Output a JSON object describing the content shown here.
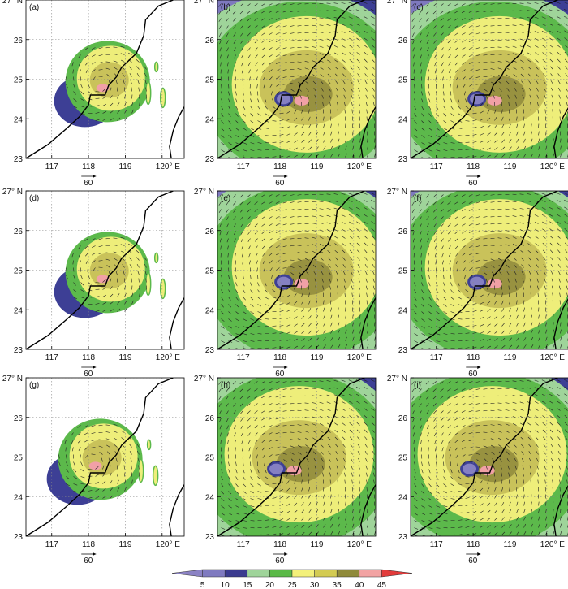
{
  "panels": [
    {
      "label": "(a)",
      "style": "sparse"
    },
    {
      "label": "(b)",
      "style": "full"
    },
    {
      "label": "(c)",
      "style": "full"
    },
    {
      "label": "(d)",
      "style": "sparse"
    },
    {
      "label": "(e)",
      "style": "full"
    },
    {
      "label": "(f)",
      "style": "full"
    },
    {
      "label": "(g)",
      "style": "sparse"
    },
    {
      "label": "(h)",
      "style": "full"
    },
    {
      "label": "(i)",
      "style": "full"
    }
  ],
  "axes": {
    "x_ticks": [
      "117",
      "118",
      "119",
      "120° E"
    ],
    "x_tick_values": [
      117,
      118,
      119,
      120
    ],
    "y_ticks": [
      "23",
      "24",
      "25",
      "26",
      "27° N"
    ],
    "y_tick_values": [
      23,
      24,
      25,
      26,
      27
    ],
    "xlim": [
      116.3,
      120.6
    ],
    "ylim": [
      23,
      27
    ]
  },
  "reference_vector_label": "60",
  "colorbar": {
    "levels": [
      "5",
      "10",
      "15",
      "20",
      "25",
      "30",
      "35",
      "40",
      "45"
    ],
    "colors": [
      "#8b82c4",
      "#7f7ac0",
      "#3b3b8f",
      "#9fd49a",
      "#5ab947",
      "#f3f07a",
      "#d3cb52",
      "#8f8a3a",
      "#f2a3a3",
      "#e23b3b"
    ]
  },
  "palette": {
    "bg_full": "#8fbf86",
    "dark_blue": "#3d3f95",
    "mid_purple": "#8580c2",
    "green": "#5cb94b",
    "light_green": "#9fd49a",
    "yellow": "#eeee7a",
    "olive": "#c9c25a",
    "dark_olive": "#8c863a",
    "pink": "#f1a0a6",
    "coast": "#000000",
    "grid": "#888888"
  }
}
